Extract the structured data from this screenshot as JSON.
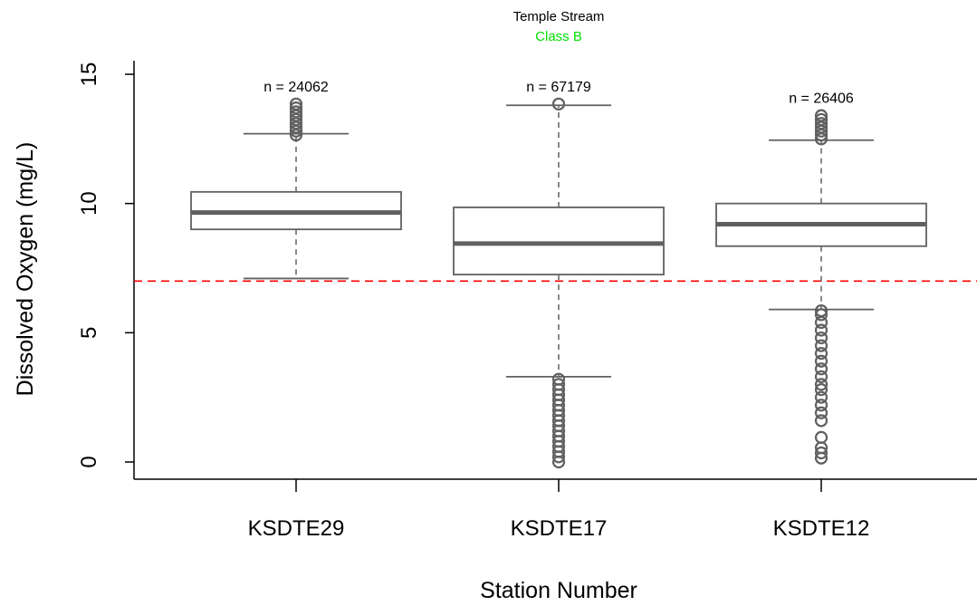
{
  "chart_data": {
    "type": "box",
    "title": "Temple Stream",
    "subtitle": "Class B",
    "xlabel": "Station Number",
    "ylabel": "Dissolved Oxygen (mg/L)",
    "ylim": [
      0,
      15
    ],
    "yticks": [
      0,
      5,
      10,
      15
    ],
    "categories": [
      "KSDTE29",
      "KSDTE17",
      "KSDTE12"
    ],
    "boxes": [
      {
        "category": "KSDTE29",
        "n_label": "n = 24062",
        "whisker_low": 7.1,
        "q1": 9.0,
        "median": 9.65,
        "q3": 10.45,
        "whisker_high": 12.7,
        "outliers": [
          12.65,
          12.8,
          12.95,
          13.1,
          13.25,
          13.4,
          13.55,
          13.7,
          13.85
        ]
      },
      {
        "category": "KSDTE17",
        "n_label": "n = 67179",
        "whisker_low": 3.3,
        "q1": 7.25,
        "median": 8.45,
        "q3": 9.85,
        "whisker_high": 13.8,
        "outliers": [
          0.0,
          0.2,
          0.4,
          0.6,
          0.8,
          1.0,
          1.2,
          1.4,
          1.6,
          1.8,
          2.0,
          2.2,
          2.4,
          2.6,
          2.8,
          3.0,
          3.2,
          13.85
        ]
      },
      {
        "category": "KSDTE12",
        "n_label": "n = 26406",
        "whisker_low": 5.9,
        "q1": 8.35,
        "median": 9.2,
        "q3": 10.0,
        "whisker_high": 12.45,
        "outliers": [
          0.15,
          0.35,
          0.55,
          0.95,
          1.6,
          1.9,
          2.2,
          2.5,
          2.8,
          3.0,
          3.3,
          3.6,
          3.9,
          4.2,
          4.5,
          4.8,
          5.1,
          5.4,
          5.7,
          5.85,
          12.5,
          12.65,
          12.8,
          12.95,
          13.1,
          13.25,
          13.4
        ]
      }
    ],
    "reference_line": {
      "value": 7.0,
      "style": "dashed"
    },
    "colors": {
      "box": "#606060",
      "median": "#606060",
      "whisker": "#606060",
      "outlier": "#606060",
      "reference": "#ff0000",
      "subtitle": "#00e000",
      "axis": "#000000"
    },
    "grid": false,
    "legend": "none"
  }
}
